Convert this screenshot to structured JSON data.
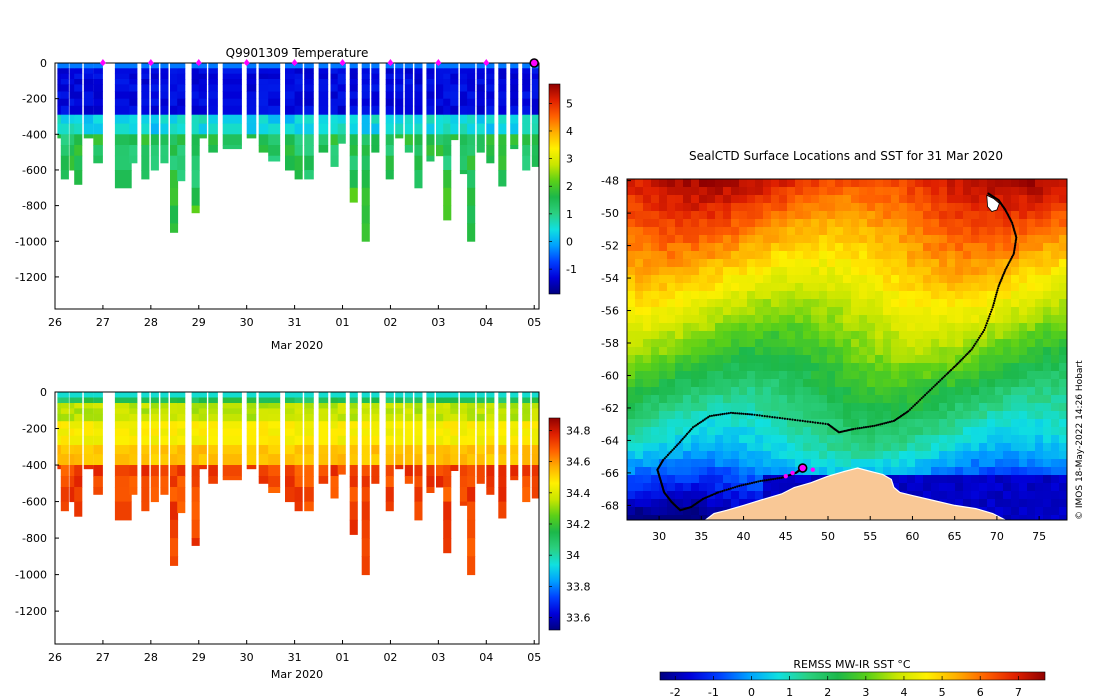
{
  "colors": {
    "jet": [
      "#00007f",
      "#0000d9",
      "#0040ff",
      "#00a0ff",
      "#10e0e0",
      "#2bd080",
      "#1cb84a",
      "#5ad018",
      "#c8e600",
      "#fff000",
      "#ffb000",
      "#ff6000",
      "#e02000",
      "#900000"
    ],
    "land": "#f9c896",
    "seal_track": "#000000",
    "profile_marker": "#ff00ff"
  },
  "chart_data": [
    {
      "id": "temperature",
      "type": "heatmap",
      "title": "Q9901309  Temperature",
      "xlabel": "Mar 2020",
      "x_ticks": [
        "26",
        "27",
        "28",
        "29",
        "30",
        "31",
        "01",
        "02",
        "03",
        "04",
        "05"
      ],
      "x_tick_values": [
        0,
        1,
        2,
        3,
        4,
        5,
        6,
        7,
        8,
        9,
        10
      ],
      "xlim": [
        0,
        10.1
      ],
      "y_ticks": [
        0,
        -200,
        -400,
        -600,
        -800,
        -1000,
        -1200
      ],
      "ylim": [
        -1380,
        0
      ],
      "colorbar": {
        "ticks": [
          -1,
          0,
          1,
          2,
          3,
          4,
          5
        ],
        "range": [
          -1.9,
          5.7
        ]
      },
      "profile_markers_days": [
        1,
        2,
        3,
        4,
        5,
        6,
        7,
        8,
        9,
        10
      ],
      "last_profile_day": 10,
      "profiles": [
        {
          "t": 0.05,
          "w": 0.12,
          "depth": 420
        },
        {
          "t": 0.12,
          "w": 0.12,
          "depth": 650
        },
        {
          "t": 0.3,
          "w": 0.18,
          "depth": 600
        },
        {
          "t": 0.4,
          "w": 0.12,
          "depth": 680
        },
        {
          "t": 0.6,
          "w": 0.15,
          "depth": 420
        },
        {
          "t": 0.8,
          "w": 0.15,
          "depth": 560
        },
        {
          "t": 1.25,
          "w": 0.3,
          "depth": 700
        },
        {
          "t": 1.55,
          "w": 0.12,
          "depth": 560
        },
        {
          "t": 1.8,
          "w": 0.12,
          "depth": 650
        },
        {
          "t": 2.0,
          "w": 0.12,
          "depth": 600
        },
        {
          "t": 2.2,
          "w": 0.12,
          "depth": 560
        },
        {
          "t": 2.4,
          "w": 0.12,
          "depth": 950
        },
        {
          "t": 2.55,
          "w": 0.12,
          "depth": 660
        },
        {
          "t": 2.85,
          "w": 0.12,
          "depth": 840
        },
        {
          "t": 3.0,
          "w": 0.12,
          "depth": 420
        },
        {
          "t": 3.2,
          "w": 0.15,
          "depth": 500
        },
        {
          "t": 3.5,
          "w": 0.35,
          "depth": 480
        },
        {
          "t": 3.75,
          "w": 0.0,
          "depth": 0
        },
        {
          "t": 4.0,
          "w": 0.15,
          "depth": 420
        },
        {
          "t": 4.25,
          "w": 0.2,
          "depth": 500
        },
        {
          "t": 4.45,
          "w": 0.2,
          "depth": 550
        },
        {
          "t": 4.8,
          "w": 0.2,
          "depth": 600
        },
        {
          "t": 5.0,
          "w": 0.12,
          "depth": 650
        },
        {
          "t": 5.2,
          "w": 0.15,
          "depth": 650
        },
        {
          "t": 5.5,
          "w": 0.15,
          "depth": 500
        },
        {
          "t": 5.75,
          "w": 0.12,
          "depth": 580
        },
        {
          "t": 5.9,
          "w": 0.12,
          "depth": 450
        },
        {
          "t": 6.15,
          "w": 0.12,
          "depth": 780
        },
        {
          "t": 6.4,
          "w": 0.12,
          "depth": 1000
        },
        {
          "t": 6.6,
          "w": 0.12,
          "depth": 500
        },
        {
          "t": 6.9,
          "w": 0.12,
          "depth": 650
        },
        {
          "t": 7.1,
          "w": 0.12,
          "depth": 420
        },
        {
          "t": 7.3,
          "w": 0.12,
          "depth": 500
        },
        {
          "t": 7.5,
          "w": 0.12,
          "depth": 700
        },
        {
          "t": 7.75,
          "w": 0.12,
          "depth": 550
        },
        {
          "t": 7.95,
          "w": 0.12,
          "depth": 520
        },
        {
          "t": 8.1,
          "w": 0.12,
          "depth": 880
        },
        {
          "t": 8.25,
          "w": 0.12,
          "depth": 430
        },
        {
          "t": 8.45,
          "w": 0.12,
          "depth": 620
        },
        {
          "t": 8.6,
          "w": 0.12,
          "depth": 1000
        },
        {
          "t": 8.8,
          "w": 0.12,
          "depth": 500
        },
        {
          "t": 9.0,
          "w": 0.12,
          "depth": 560
        },
        {
          "t": 9.25,
          "w": 0.12,
          "depth": 690
        },
        {
          "t": 9.5,
          "w": 0.12,
          "depth": 480
        },
        {
          "t": 9.75,
          "w": 0.12,
          "depth": 600
        },
        {
          "t": 9.95,
          "w": 0.12,
          "depth": 580
        }
      ]
    },
    {
      "id": "salinity",
      "type": "heatmap",
      "title": "",
      "xlabel": "Mar 2020",
      "x_ticks": [
        "26",
        "27",
        "28",
        "29",
        "30",
        "31",
        "01",
        "02",
        "03",
        "04",
        "05"
      ],
      "x_tick_values": [
        0,
        1,
        2,
        3,
        4,
        5,
        6,
        7,
        8,
        9,
        10
      ],
      "xlim": [
        0,
        10.1
      ],
      "y_ticks": [
        0,
        -200,
        -400,
        -600,
        -800,
        -1000,
        -1200
      ],
      "ylim": [
        -1380,
        0
      ],
      "colorbar": {
        "ticks": [
          33.6,
          33.8,
          34,
          34.2,
          34.4,
          34.6,
          34.8
        ],
        "range": [
          33.52,
          34.88
        ]
      }
    },
    {
      "id": "sst_map",
      "type": "heatmap",
      "title": "SealCTD Surface Locations and SST for 31 Mar 2020",
      "x_ticks": [
        30,
        35,
        40,
        45,
        50,
        55,
        60,
        65,
        70,
        75
      ],
      "xlim": [
        26.2,
        78.3
      ],
      "y_ticks": [
        -48,
        -50,
        -52,
        -54,
        -56,
        -58,
        -60,
        -62,
        -64,
        -66,
        -68
      ],
      "ylim": [
        -68.9,
        -47.9
      ],
      "colorbar": {
        "label": "REMSS MW-IR SST °C",
        "ticks": [
          -2,
          -1,
          0,
          1,
          2,
          3,
          4,
          5,
          6,
          7
        ],
        "range": [
          -2.4,
          7.7
        ]
      },
      "track_lonlat": [
        [
          69.0,
          -48.8
        ],
        [
          70.2,
          -49.2
        ],
        [
          71.0,
          -49.8
        ],
        [
          71.8,
          -50.6
        ],
        [
          72.3,
          -51.5
        ],
        [
          72.0,
          -52.5
        ],
        [
          71.0,
          -53.5
        ],
        [
          70.2,
          -54.5
        ],
        [
          69.5,
          -55.8
        ],
        [
          68.5,
          -57.2
        ],
        [
          67.0,
          -58.4
        ],
        [
          65.3,
          -59.3
        ],
        [
          63.5,
          -60.2
        ],
        [
          61.5,
          -61.2
        ],
        [
          59.5,
          -62.2
        ],
        [
          57.8,
          -62.8
        ],
        [
          55.5,
          -63.1
        ],
        [
          53.0,
          -63.3
        ],
        [
          51.3,
          -63.5
        ],
        [
          50.0,
          -63.0
        ],
        [
          47.0,
          -62.8
        ],
        [
          44.0,
          -62.6
        ],
        [
          41.0,
          -62.4
        ],
        [
          38.5,
          -62.3
        ],
        [
          36.0,
          -62.5
        ],
        [
          34.0,
          -63.2
        ],
        [
          32.3,
          -64.2
        ],
        [
          30.5,
          -65.2
        ],
        [
          29.8,
          -65.8
        ],
        [
          30.2,
          -66.5
        ],
        [
          30.6,
          -67.2
        ],
        [
          31.5,
          -67.8
        ],
        [
          32.5,
          -68.3
        ],
        [
          33.8,
          -68.1
        ],
        [
          35.2,
          -67.6
        ],
        [
          37.0,
          -67.2
        ],
        [
          39.5,
          -66.8
        ],
        [
          42.0,
          -66.5
        ],
        [
          44.5,
          -66.3
        ],
        [
          46.2,
          -66.0
        ],
        [
          47.0,
          -65.7
        ]
      ],
      "recent_profiles_lonlat": [
        [
          45.0,
          -66.2
        ],
        [
          45.8,
          -66.0
        ],
        [
          48.2,
          -65.8
        ]
      ],
      "latest_position_lonlat": [
        47.0,
        -65.7
      ],
      "credit": "© IMOS 18-May-2022 14:26 Hobart"
    }
  ]
}
